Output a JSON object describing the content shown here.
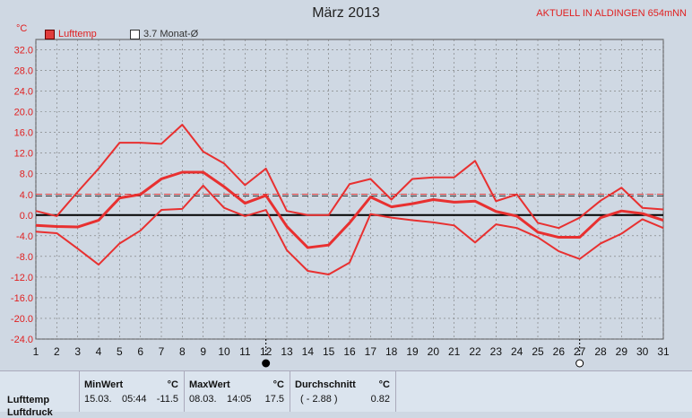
{
  "title": "März 2013",
  "station": "AKTUELL IN ALDINGEN 654mNN",
  "unit": "°C",
  "legend": [
    {
      "label": "Lufttemp",
      "color": "#e03c3c"
    },
    {
      "label": "3.7 Monat-Ø",
      "color": "#ffffff"
    }
  ],
  "chart_data": {
    "type": "line",
    "title": "März 2013",
    "x": [
      1,
      2,
      3,
      4,
      5,
      6,
      7,
      8,
      9,
      10,
      11,
      12,
      13,
      14,
      15,
      16,
      17,
      18,
      19,
      20,
      21,
      22,
      23,
      24,
      25,
      26,
      27,
      28,
      29,
      30,
      31
    ],
    "xlim": [
      1,
      31
    ],
    "ylim": [
      -24,
      34
    ],
    "yticks": [
      32.0,
      28.0,
      24.0,
      20.0,
      16.0,
      12.0,
      8.0,
      4.0,
      0.0,
      -4.0,
      -8.0,
      -12.0,
      -16.0,
      -20.0,
      -24.0
    ],
    "ytick_labels": [
      "32.0",
      "28.0",
      "24.0",
      "20.0",
      "16.0",
      "12.0",
      "8.0",
      "4.0",
      "0.0",
      "-4.0",
      "-8.0",
      "-12.0",
      "-16.0",
      "-20.0",
      "-24.0"
    ],
    "reference_line": {
      "label": "3.7 Monat-Ø",
      "value": 3.7
    },
    "zero_line": 0,
    "grid": true,
    "series": [
      {
        "role": "max",
        "values": [
          0.8,
          -0.2,
          4.5,
          9,
          14,
          14,
          13.8,
          17.5,
          12.3,
          10,
          5.8,
          9,
          0.8,
          0,
          0,
          6,
          7,
          3,
          7,
          7.3,
          7.3,
          10.5,
          2.7,
          4,
          -1.5,
          -2.5,
          -0.5,
          2.8,
          5.3,
          1.4,
          1.1
        ]
      },
      {
        "role": "mean",
        "values": [
          -2,
          -2.2,
          -2.3,
          -1,
          3.3,
          4,
          7,
          8.3,
          8.3,
          5.5,
          2.3,
          3.8,
          -2.2,
          -6.3,
          -5.8,
          -1.5,
          3.5,
          1.6,
          2.2,
          3,
          2.5,
          2.7,
          0.7,
          -0.2,
          -3.3,
          -4.3,
          -4.3,
          -0.5,
          0.8,
          0.3,
          -1
        ]
      },
      {
        "role": "min",
        "values": [
          -3.2,
          -3.5,
          -6.5,
          -9.6,
          -5.5,
          -3,
          1,
          1.2,
          5.7,
          1.4,
          -0.2,
          1,
          -6.8,
          -10.8,
          -11.5,
          -9.2,
          0.2,
          -0.5,
          -1,
          -1.4,
          -2,
          -5.3,
          -1.8,
          -2.5,
          -4.3,
          -7,
          -8.5,
          -5.5,
          -3.6,
          -0.8,
          -2.5
        ]
      }
    ],
    "markers": [
      {
        "day": 12,
        "kind": "new-moon"
      },
      {
        "day": 27,
        "kind": "full-moon"
      }
    ]
  },
  "stats": {
    "row_label": "Lufttemp",
    "row_label2": "Luftdruck",
    "min": {
      "header": "MinWert",
      "unit": "°C",
      "date": "15.03.",
      "time": "05:44",
      "value": "-11.5"
    },
    "max": {
      "header": "MaxWert",
      "unit": "°C",
      "date": "08.03.",
      "time": "14:05",
      "value": "17.5"
    },
    "avg": {
      "header": "Durchschnitt",
      "unit": "°C",
      "paren": "( - 2.88 )",
      "value": "0.82"
    }
  }
}
